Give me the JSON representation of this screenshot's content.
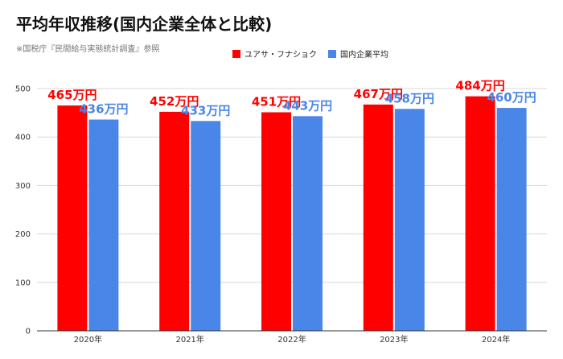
{
  "header": {
    "title": "平均年収推移(国内企業全体と比較)",
    "note": "※国税庁『民間給与実態統計調査』参照"
  },
  "colors": {
    "series_0": "#ff0000",
    "series_1": "#4a86e8"
  },
  "chart_data": {
    "type": "bar",
    "categories": [
      "2020年",
      "2021年",
      "2022年",
      "2023年",
      "2024年"
    ],
    "series": [
      {
        "name": "ユアサ・フナショク",
        "values": [
          465,
          452,
          451,
          467,
          484
        ],
        "labels": [
          "465万円",
          "452万円",
          "451万円",
          "467万円",
          "484万円"
        ]
      },
      {
        "name": "国内企業平均",
        "values": [
          436,
          433,
          443,
          458,
          460
        ],
        "labels": [
          "436万円",
          "433万円",
          "443万円",
          "458万円",
          "460万円"
        ]
      }
    ],
    "yticks": [
      0,
      100,
      200,
      300,
      400,
      500
    ],
    "ylim": [
      0,
      500
    ],
    "grid": true,
    "legend_position": "top-center",
    "title": "平均年収推移(国内企業全体と比較)",
    "xlabel": "",
    "ylabel": ""
  }
}
